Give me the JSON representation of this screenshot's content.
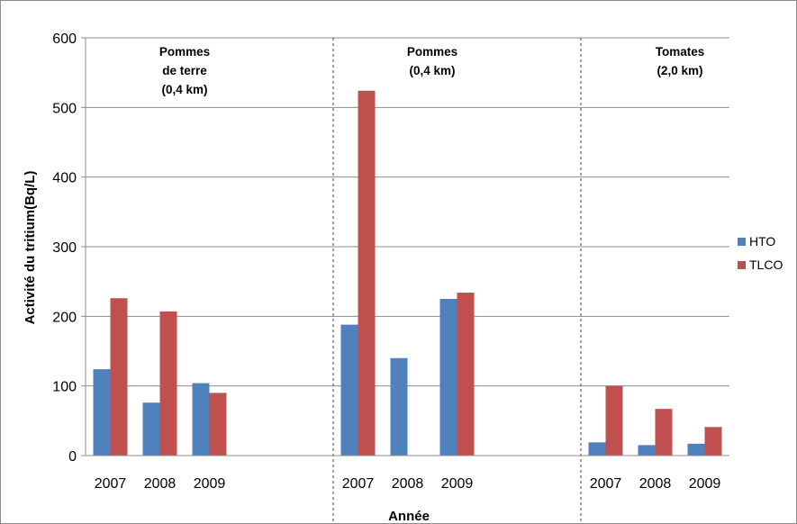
{
  "chart_data": {
    "type": "bar",
    "title": "",
    "xlabel": "Année",
    "ylabel": "Activité du tritium(Bq/L)",
    "ylim": [
      0,
      600
    ],
    "yticks": [
      0,
      100,
      200,
      300,
      400,
      500,
      600
    ],
    "grid": true,
    "legend_position": "right",
    "groups": [
      {
        "label_lines": [
          "Pommes",
          "de terre",
          "(0,4 km)"
        ]
      },
      {
        "label_lines": [
          "Pommes",
          "(0,4 km)"
        ]
      },
      {
        "label_lines": [
          "Tomates",
          "(2,0 km)"
        ]
      }
    ],
    "categories": [
      "2007",
      "2008",
      "2009",
      "",
      "",
      "2007",
      "2008",
      "2009",
      "",
      "",
      "2007",
      "2008",
      "2009"
    ],
    "series": [
      {
        "name": "HTO",
        "color": "#4f81bd",
        "values": [
          124,
          76,
          104,
          null,
          null,
          188,
          140,
          225,
          null,
          null,
          19,
          15,
          17
        ]
      },
      {
        "name": "TLCO",
        "color": "#c0504d",
        "values": [
          226,
          207,
          90,
          null,
          null,
          524,
          null,
          234,
          null,
          null,
          100,
          67,
          41
        ]
      }
    ]
  }
}
